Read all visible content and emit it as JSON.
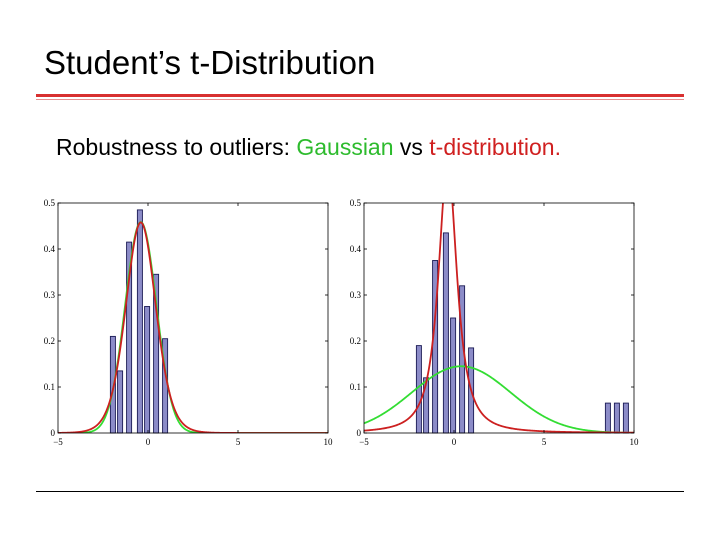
{
  "slide": {
    "title": "Student’s t-Distribution",
    "subtitle_parts": {
      "prefix": "Robustness to outliers: ",
      "gaussian": "Gaussian",
      "middle": " vs ",
      "tdist": "t-distribution."
    }
  },
  "colors": {
    "bars_fill": "#8c8cc8",
    "bars_stroke": "#1a1a55",
    "gaussian_curve": "#33dd33",
    "t_curve": "#cc2020",
    "title_rule": "#d83030"
  },
  "chart_data": [
    {
      "type": "bar",
      "xlim": [
        -5,
        10
      ],
      "ylim": [
        0,
        0.5
      ],
      "xticks": [
        "−5",
        "0",
        "5",
        "10"
      ],
      "yticks": [
        "0",
        "0.1",
        "0.2",
        "0.3",
        "0.4",
        "0.5"
      ],
      "bar_width": 0.28,
      "bars": [
        {
          "x": -1.95,
          "y": 0.21
        },
        {
          "x": -1.55,
          "y": 0.135
        },
        {
          "x": -1.05,
          "y": 0.415
        },
        {
          "x": -0.45,
          "y": 0.485
        },
        {
          "x": -0.05,
          "y": 0.275
        },
        {
          "x": 0.45,
          "y": 0.345
        },
        {
          "x": 0.95,
          "y": 0.205
        }
      ],
      "series": [
        {
          "kind": "gaussian",
          "mean": -0.4,
          "sd": 0.87,
          "color": "#33dd33"
        },
        {
          "kind": "student_t",
          "mu": -0.4,
          "scale": 0.85,
          "nu": 10,
          "color": "#cc2020"
        }
      ]
    },
    {
      "type": "bar",
      "xlim": [
        -5,
        10
      ],
      "ylim": [
        0,
        0.5
      ],
      "xticks": [
        "−5",
        "0",
        "5",
        "10"
      ],
      "yticks": [
        "0",
        "0.1",
        "0.2",
        "0.3",
        "0.4",
        "0.5"
      ],
      "bar_width": 0.28,
      "bars": [
        {
          "x": -1.95,
          "y": 0.19
        },
        {
          "x": -1.55,
          "y": 0.12
        },
        {
          "x": -1.05,
          "y": 0.375
        },
        {
          "x": -0.45,
          "y": 0.435
        },
        {
          "x": -0.05,
          "y": 0.25
        },
        {
          "x": 0.45,
          "y": 0.32
        },
        {
          "x": 0.95,
          "y": 0.185
        },
        {
          "x": 8.55,
          "y": 0.065
        },
        {
          "x": 9.05,
          "y": 0.065
        },
        {
          "x": 9.55,
          "y": 0.065
        }
      ],
      "series": [
        {
          "kind": "gaussian",
          "mean": 0.4,
          "sd": 2.75,
          "color": "#33dd33"
        },
        {
          "kind": "student_t",
          "mu": -0.35,
          "scale": 0.58,
          "nu": 1.5,
          "color": "#cc2020"
        }
      ]
    }
  ]
}
